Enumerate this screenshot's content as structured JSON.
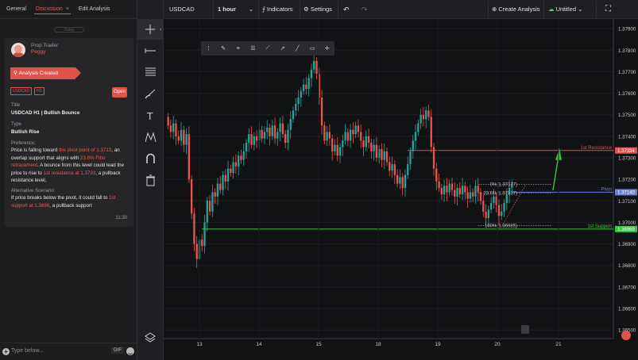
{
  "left_panel": {
    "tabs": [
      {
        "label": "General"
      },
      {
        "label": "Discussion",
        "close": "×"
      },
      {
        "label": "Edit Analysis"
      }
    ],
    "date_pill": "Today",
    "post": {
      "role": "Prop Trader",
      "name": "Peggy",
      "banner": "Analysis Created",
      "tags": [
        "USDCAD",
        "H1"
      ],
      "open_label": "Open",
      "title_label": "Title",
      "title_value": "USDCAD H1 | Bullish Bounce",
      "type_label": "Type",
      "type_value": "Bullish Rise",
      "preference_label": "Preference:",
      "preference_parts": [
        "Price is falling toward ",
        "the pivot point of 1.3713",
        ", an overlap support that aligns with ",
        "23.6% Fibo retracement",
        ". A bounce from this level could lead the price to rise to ",
        "1st resistance at 1.3733",
        ", a pullback resistance  level,"
      ],
      "alt_label": "Alternative Scenario:",
      "alt_parts": [
        "If price breaks below the pivot, it could fall to ",
        "1st support at 1.3696",
        ", a pullback support"
      ],
      "time": "11:30"
    },
    "chat": {
      "placeholder": "Type below...",
      "gif": "GIF"
    }
  },
  "toolbar": {
    "symbol": "USDCAD",
    "timeframe": "1 hour",
    "indicators": "Indicators",
    "settings": "Settings",
    "create_analysis": "Create Analysis",
    "layout_name": "Untitled"
  },
  "chart_data": {
    "type": "candlestick",
    "symbol": "USDCAD",
    "timeframe": "1 hour",
    "x_ticks": [
      "13",
      "14",
      "15",
      "18",
      "19",
      "20",
      "21"
    ],
    "y_ticks": [
      "1.37900",
      "1.37800",
      "1.37700",
      "1.37600",
      "1.37500",
      "1.37400",
      "1.37300",
      "1.37200",
      "1.37100",
      "1.37000",
      "1.36900",
      "1.36800",
      "1.36700",
      "1.36600",
      "1.36500"
    ],
    "ylim": [
      1.3646,
      1.3793
    ],
    "levels": [
      {
        "label": "1st Resistance",
        "value": 1.37334,
        "tag": "1.37334",
        "color": "#e0524a"
      },
      {
        "label": "Pivot",
        "value": 1.3714,
        "tag": "1.37140",
        "color": "#6a7fd8"
      },
      {
        "label": "1st Support",
        "value": 1.36969,
        "tag": "1.36969",
        "color": "#2ecc40"
      }
    ],
    "fib_labels": [
      "0%(1.37177)",
      "23.6%(1.37137)",
      "100%(1.36985)"
    ],
    "closes": [
      1.3745,
      1.3742,
      1.3746,
      1.374,
      1.3738,
      1.3743,
      1.3736,
      1.3741,
      1.372,
      1.3704,
      1.369,
      1.3683,
      1.3692,
      1.3689,
      1.37,
      1.371,
      1.3705,
      1.3714,
      1.3712,
      1.3718,
      1.3715,
      1.3722,
      1.3719,
      1.3725,
      1.3723,
      1.3728,
      1.3726,
      1.3731,
      1.3729,
      1.3733,
      1.3737,
      1.3741,
      1.3736,
      1.374,
      1.3738,
      1.3743,
      1.3739,
      1.3742,
      1.3744,
      1.374,
      1.3745,
      1.3739,
      1.3742,
      1.3746,
      1.3741,
      1.3737,
      1.3743,
      1.3748,
      1.3752,
      1.3755,
      1.3758,
      1.3761,
      1.3764,
      1.3762,
      1.3767,
      1.3771,
      1.3775,
      1.3769,
      1.3758,
      1.3745,
      1.3738,
      1.3742,
      1.3739,
      1.3733,
      1.3736,
      1.3731,
      1.3735,
      1.3738,
      1.3742,
      1.3738,
      1.3743,
      1.3741,
      1.3745,
      1.3742,
      1.3738,
      1.3735,
      1.374,
      1.3737,
      1.3733,
      1.3736,
      1.373,
      1.3734,
      1.3729,
      1.3733,
      1.3728,
      1.3724,
      1.3727,
      1.3722,
      1.3718,
      1.3721,
      1.3716,
      1.3722,
      1.3727,
      1.3733,
      1.3738,
      1.3742,
      1.3746,
      1.375,
      1.3748,
      1.3752,
      1.3749,
      1.3735,
      1.3725,
      1.3719,
      1.3716,
      1.3713,
      1.3717,
      1.3714,
      1.3718,
      1.3715,
      1.3712,
      1.3716,
      1.3713,
      1.3717,
      1.3714,
      1.3711,
      1.3714,
      1.3712,
      1.3717,
      1.3714,
      1.371,
      1.3705,
      1.3702,
      1.3706,
      1.3709,
      1.3712,
      1.3708,
      1.3703,
      1.3705,
      1.3709,
      1.3713,
      1.3716,
      1.3718
    ]
  }
}
